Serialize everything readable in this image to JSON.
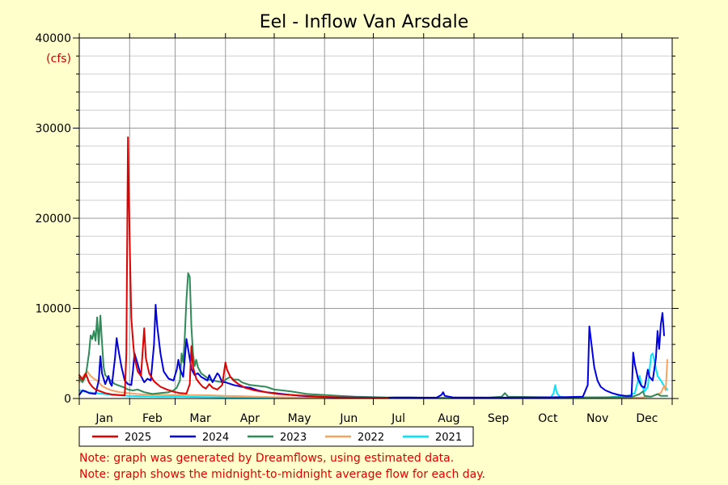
{
  "chart_data": {
    "type": "line",
    "title": "Eel - Inflow Van Arsdale",
    "ylabel": "(cfs)",
    "xlabel": "",
    "ylim": [
      0,
      40000
    ],
    "xlim": [
      0,
      365
    ],
    "yticks": [
      0,
      10000,
      20000,
      30000,
      40000
    ],
    "ytick_labels": [
      "0",
      "10000",
      "20000",
      "30000",
      "40000"
    ],
    "months": [
      "Jan",
      "Feb",
      "Mar",
      "Apr",
      "May",
      "Jun",
      "Jul",
      "Aug",
      "Sep",
      "Oct",
      "Nov",
      "Dec"
    ],
    "grid": true,
    "legend_placement": "bottom-left",
    "series": [
      {
        "name": "2025",
        "color": "#e00000",
        "points": [
          [
            0,
            2600
          ],
          [
            2,
            2100
          ],
          [
            4,
            2800
          ],
          [
            6,
            1800
          ],
          [
            8,
            1300
          ],
          [
            10,
            1000
          ],
          [
            13,
            800
          ],
          [
            16,
            600
          ],
          [
            20,
            450
          ],
          [
            25,
            380
          ],
          [
            28,
            350
          ],
          [
            29,
            5000
          ],
          [
            30,
            29000
          ],
          [
            31,
            17500
          ],
          [
            32,
            9000
          ],
          [
            33,
            6500
          ],
          [
            34,
            4500
          ],
          [
            36,
            3000
          ],
          [
            38,
            2500
          ],
          [
            40,
            7800
          ],
          [
            41,
            4500
          ],
          [
            43,
            2800
          ],
          [
            46,
            1900
          ],
          [
            50,
            1300
          ],
          [
            54,
            1000
          ],
          [
            58,
            750
          ],
          [
            62,
            600
          ],
          [
            66,
            550
          ],
          [
            68,
            1600
          ],
          [
            69,
            5800
          ],
          [
            70,
            3500
          ],
          [
            72,
            2200
          ],
          [
            74,
            1700
          ],
          [
            76,
            1300
          ],
          [
            78,
            1100
          ],
          [
            80,
            1600
          ],
          [
            82,
            1200
          ],
          [
            85,
            1000
          ],
          [
            88,
            1500
          ],
          [
            90,
            4000
          ],
          [
            91,
            3200
          ],
          [
            93,
            2400
          ],
          [
            95,
            2000
          ],
          [
            98,
            1600
          ],
          [
            102,
            1200
          ],
          [
            108,
            900
          ],
          [
            115,
            700
          ],
          [
            122,
            500
          ],
          [
            130,
            400
          ],
          [
            140,
            300
          ],
          [
            150,
            200
          ],
          [
            160,
            130
          ],
          [
            170,
            100
          ],
          [
            180,
            90
          ],
          [
            190,
            80
          ]
        ]
      },
      {
        "name": "2024",
        "color": "#0000e0",
        "points": [
          [
            0,
            400
          ],
          [
            2,
            900
          ],
          [
            4,
            800
          ],
          [
            6,
            600
          ],
          [
            10,
            500
          ],
          [
            12,
            2000
          ],
          [
            13,
            4700
          ],
          [
            14,
            2800
          ],
          [
            16,
            1600
          ],
          [
            18,
            2500
          ],
          [
            19,
            1700
          ],
          [
            20,
            1400
          ],
          [
            22,
            4500
          ],
          [
            23,
            6700
          ],
          [
            24,
            5500
          ],
          [
            26,
            3500
          ],
          [
            28,
            2000
          ],
          [
            30,
            1600
          ],
          [
            32,
            1500
          ],
          [
            33,
            3000
          ],
          [
            34,
            5000
          ],
          [
            36,
            3800
          ],
          [
            38,
            2500
          ],
          [
            40,
            1800
          ],
          [
            42,
            2200
          ],
          [
            44,
            2000
          ],
          [
            46,
            6000
          ],
          [
            47,
            10400
          ],
          [
            48,
            8000
          ],
          [
            50,
            5000
          ],
          [
            52,
            3000
          ],
          [
            55,
            2200
          ],
          [
            58,
            2000
          ],
          [
            60,
            3200
          ],
          [
            61,
            4300
          ],
          [
            62,
            3300
          ],
          [
            64,
            2400
          ],
          [
            66,
            6600
          ],
          [
            67,
            5500
          ],
          [
            69,
            3300
          ],
          [
            71,
            2600
          ],
          [
            73,
            2800
          ],
          [
            75,
            2400
          ],
          [
            77,
            2200
          ],
          [
            79,
            2000
          ],
          [
            80,
            2600
          ],
          [
            82,
            1800
          ],
          [
            85,
            2800
          ],
          [
            86,
            2600
          ],
          [
            88,
            1800
          ],
          [
            90,
            1800
          ],
          [
            95,
            1500
          ],
          [
            100,
            1300
          ],
          [
            105,
            1200
          ],
          [
            110,
            900
          ],
          [
            115,
            700
          ],
          [
            120,
            600
          ],
          [
            130,
            400
          ],
          [
            140,
            250
          ],
          [
            150,
            180
          ],
          [
            160,
            130
          ],
          [
            170,
            110
          ],
          [
            180,
            100
          ],
          [
            190,
            90
          ],
          [
            195,
            110
          ],
          [
            200,
            120
          ],
          [
            210,
            100
          ],
          [
            220,
            100
          ],
          [
            223,
            400
          ],
          [
            224,
            700
          ],
          [
            225,
            300
          ],
          [
            230,
            130
          ],
          [
            240,
            120
          ],
          [
            260,
            100
          ],
          [
            280,
            120
          ],
          [
            300,
            150
          ],
          [
            310,
            200
          ],
          [
            313,
            1500
          ],
          [
            314,
            8000
          ],
          [
            315,
            6500
          ],
          [
            317,
            3500
          ],
          [
            319,
            2000
          ],
          [
            321,
            1300
          ],
          [
            324,
            900
          ],
          [
            328,
            600
          ],
          [
            332,
            400
          ],
          [
            336,
            300
          ],
          [
            340,
            300
          ],
          [
            341,
            5100
          ],
          [
            342,
            3800
          ],
          [
            344,
            2200
          ],
          [
            346,
            1400
          ],
          [
            348,
            1200
          ],
          [
            350,
            3200
          ],
          [
            351,
            2400
          ],
          [
            353,
            2000
          ],
          [
            355,
            4500
          ],
          [
            356,
            7500
          ],
          [
            357,
            5500
          ],
          [
            358,
            8200
          ],
          [
            359,
            9500
          ],
          [
            360,
            7000
          ]
        ]
      },
      {
        "name": "2023",
        "color": "#2e8b57",
        "points": [
          [
            0,
            2300
          ],
          [
            2,
            1800
          ],
          [
            4,
            2500
          ],
          [
            6,
            5000
          ],
          [
            7,
            7000
          ],
          [
            8,
            6600
          ],
          [
            9,
            7500
          ],
          [
            10,
            6400
          ],
          [
            11,
            9000
          ],
          [
            12,
            6000
          ],
          [
            13,
            9200
          ],
          [
            14,
            6200
          ],
          [
            15,
            3500
          ],
          [
            16,
            2600
          ],
          [
            18,
            2200
          ],
          [
            20,
            1900
          ],
          [
            22,
            1600
          ],
          [
            25,
            1400
          ],
          [
            28,
            1200
          ],
          [
            30,
            1000
          ],
          [
            33,
            900
          ],
          [
            36,
            1000
          ],
          [
            40,
            700
          ],
          [
            45,
            500
          ],
          [
            50,
            600
          ],
          [
            55,
            700
          ],
          [
            58,
            900
          ],
          [
            60,
            1200
          ],
          [
            62,
            2000
          ],
          [
            63,
            5000
          ],
          [
            64,
            4000
          ],
          [
            65,
            7000
          ],
          [
            66,
            11000
          ],
          [
            67,
            13900
          ],
          [
            68,
            13500
          ],
          [
            69,
            8000
          ],
          [
            70,
            5000
          ],
          [
            71,
            3600
          ],
          [
            72,
            4300
          ],
          [
            73,
            3500
          ],
          [
            75,
            2800
          ],
          [
            78,
            2400
          ],
          [
            80,
            2100
          ],
          [
            82,
            2000
          ],
          [
            85,
            1900
          ],
          [
            88,
            1800
          ],
          [
            90,
            2100
          ],
          [
            93,
            2400
          ],
          [
            95,
            2100
          ],
          [
            98,
            2100
          ],
          [
            100,
            1800
          ],
          [
            105,
            1500
          ],
          [
            110,
            1400
          ],
          [
            115,
            1300
          ],
          [
            120,
            1000
          ],
          [
            125,
            900
          ],
          [
            130,
            800
          ],
          [
            140,
            500
          ],
          [
            150,
            400
          ],
          [
            160,
            300
          ],
          [
            170,
            200
          ],
          [
            180,
            150
          ],
          [
            190,
            120
          ],
          [
            210,
            90
          ],
          [
            230,
            80
          ],
          [
            250,
            70
          ],
          [
            260,
            200
          ],
          [
            262,
            600
          ],
          [
            264,
            200
          ],
          [
            280,
            150
          ],
          [
            300,
            120
          ],
          [
            330,
            140
          ],
          [
            340,
            150
          ],
          [
            345,
            500
          ],
          [
            347,
            800
          ],
          [
            348,
            300
          ],
          [
            352,
            200
          ],
          [
            356,
            500
          ],
          [
            358,
            300
          ],
          [
            362,
            300
          ]
        ]
      },
      {
        "name": "2022",
        "color": "#f4a460",
        "points": [
          [
            0,
            1800
          ],
          [
            3,
            2600
          ],
          [
            5,
            3000
          ],
          [
            7,
            2500
          ],
          [
            9,
            2200
          ],
          [
            11,
            2000
          ],
          [
            14,
            1400
          ],
          [
            17,
            1100
          ],
          [
            20,
            900
          ],
          [
            25,
            700
          ],
          [
            30,
            600
          ],
          [
            35,
            500
          ],
          [
            40,
            450
          ],
          [
            45,
            420
          ],
          [
            50,
            400
          ],
          [
            60,
            380
          ],
          [
            70,
            380
          ],
          [
            80,
            360
          ],
          [
            90,
            300
          ],
          [
            100,
            260
          ],
          [
            110,
            200
          ],
          [
            120,
            150
          ],
          [
            130,
            120
          ],
          [
            150,
            80
          ],
          [
            170,
            60
          ],
          [
            200,
            40
          ],
          [
            250,
            30
          ],
          [
            300,
            40
          ],
          [
            330,
            60
          ],
          [
            345,
            100
          ],
          [
            352,
            200
          ],
          [
            358,
            600
          ],
          [
            360,
            1400
          ],
          [
            361,
            900
          ],
          [
            362,
            4300
          ]
        ]
      },
      {
        "name": "2021",
        "color": "#00e5ff",
        "points": [
          [
            0,
            900
          ],
          [
            5,
            700
          ],
          [
            10,
            600
          ],
          [
            15,
            500
          ],
          [
            20,
            400
          ],
          [
            30,
            300
          ],
          [
            40,
            250
          ],
          [
            50,
            200
          ],
          [
            60,
            220
          ],
          [
            70,
            180
          ],
          [
            80,
            150
          ],
          [
            90,
            130
          ],
          [
            100,
            110
          ],
          [
            110,
            100
          ],
          [
            120,
            90
          ],
          [
            130,
            80
          ],
          [
            150,
            70
          ],
          [
            180,
            60
          ],
          [
            210,
            50
          ],
          [
            240,
            45
          ],
          [
            270,
            40
          ],
          [
            290,
            45
          ],
          [
            292,
            600
          ],
          [
            293,
            1500
          ],
          [
            294,
            600
          ],
          [
            296,
            200
          ],
          [
            300,
            120
          ],
          [
            310,
            100
          ],
          [
            322,
            80
          ],
          [
            330,
            200
          ],
          [
            338,
            300
          ],
          [
            342,
            600
          ],
          [
            344,
            2000
          ],
          [
            345,
            2500
          ],
          [
            346,
            1500
          ],
          [
            348,
            800
          ],
          [
            350,
            1300
          ],
          [
            352,
            4800
          ],
          [
            353,
            5000
          ],
          [
            354,
            4200
          ],
          [
            356,
            2500
          ],
          [
            358,
            2000
          ],
          [
            360,
            1400
          ],
          [
            362,
            1000
          ]
        ]
      }
    ]
  },
  "notes": [
    "Note: graph was generated by Dreamflows, using estimated data.",
    "Note: graph shows the midnight-to-midnight average flow for each day."
  ]
}
